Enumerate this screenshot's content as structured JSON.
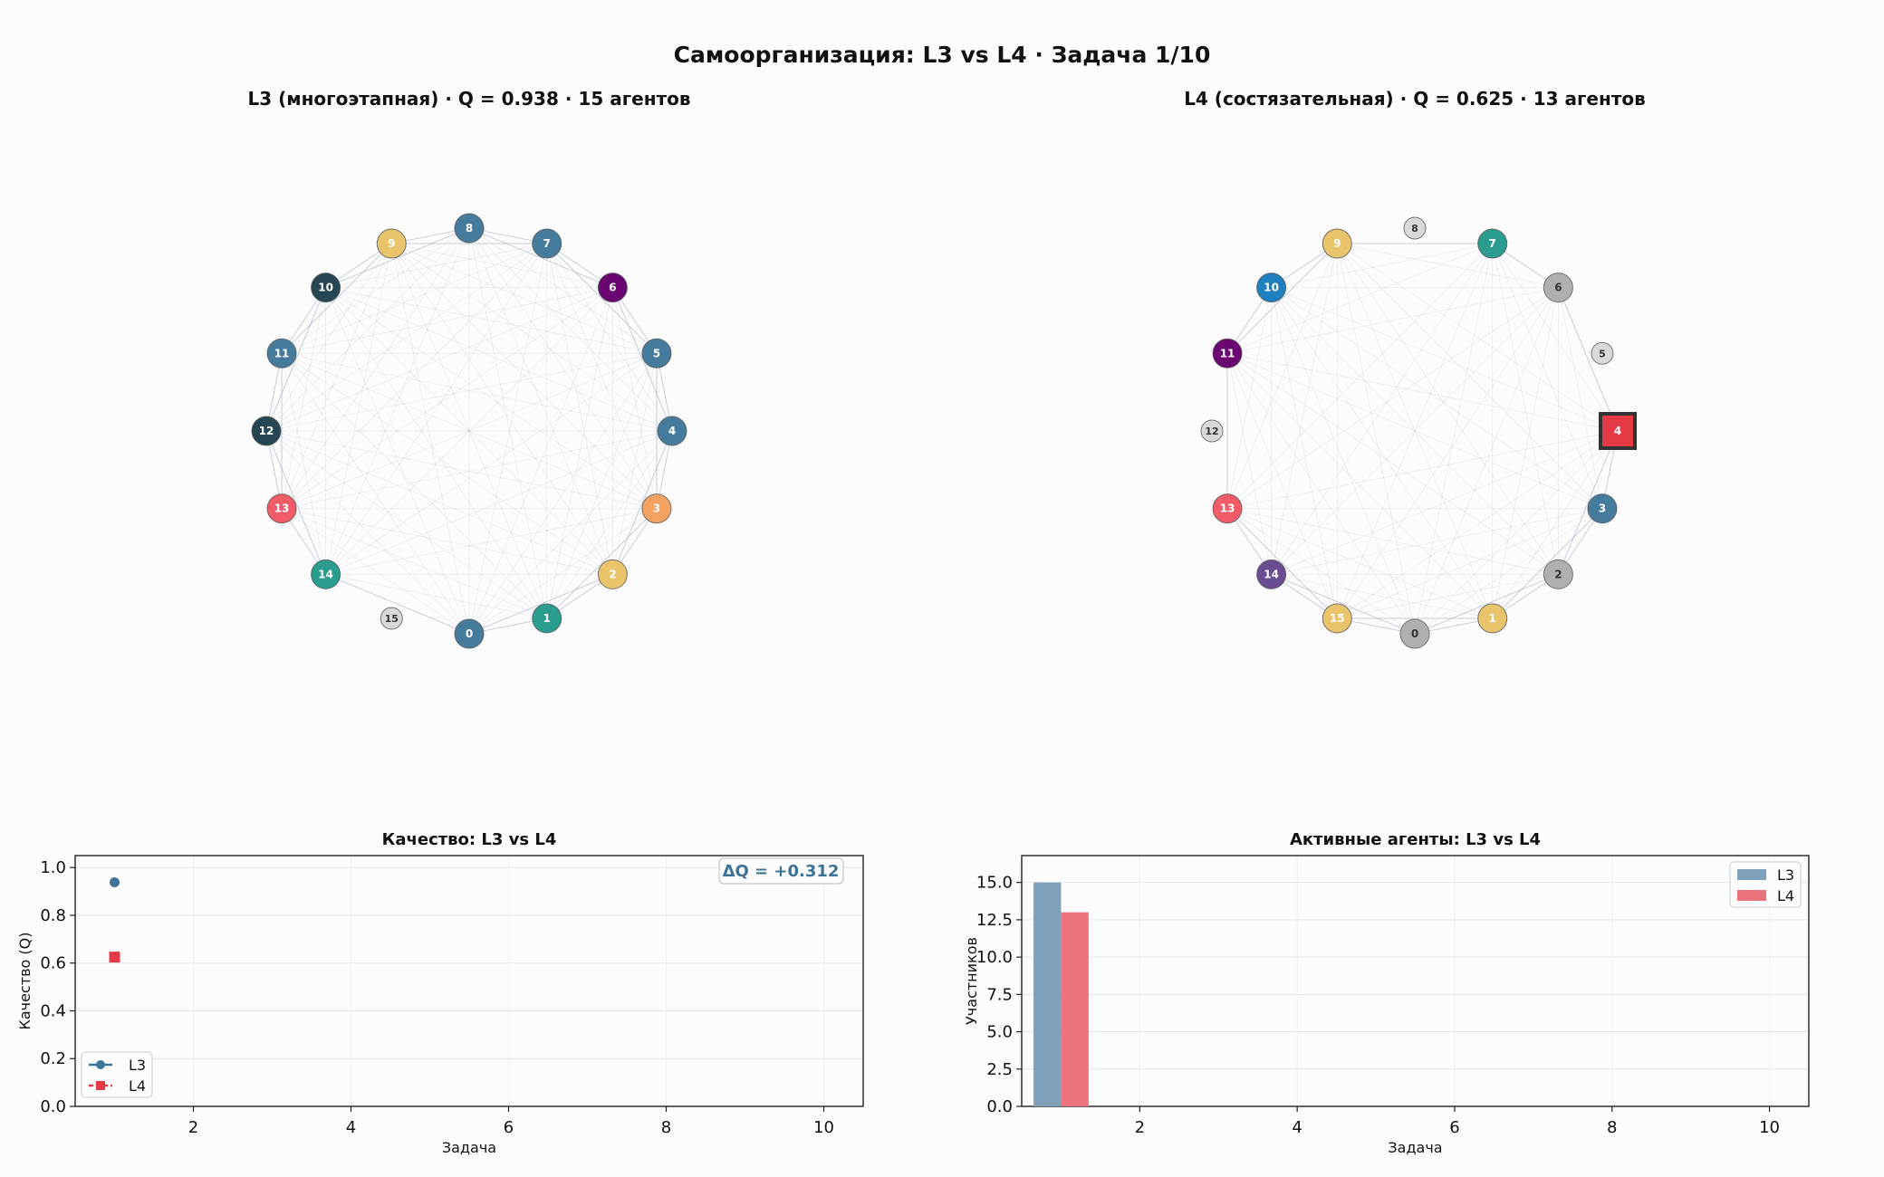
{
  "figure": {
    "title": "Самоорганизация: L3 vs L4  ·  Задача 1/10",
    "l3_title": "L3 (многоэтапная)  ·  Q = 0.938  ·  15 агентов",
    "l4_title": "L4 (состязательная)  ·  Q = 0.625  ·  13 агентов"
  },
  "colors": {
    "l3": "#3d7399",
    "l4": "#e63946",
    "inactive": "#d9d9d9",
    "grey": "#b0b0b0",
    "edge": "#9aa9c0"
  },
  "networks": [
    {
      "id": "l3",
      "nodes": [
        {
          "label": "0",
          "color": "#457b9d",
          "active": true,
          "shape": "circle"
        },
        {
          "label": "1",
          "color": "#2a9d8f",
          "active": true,
          "shape": "circle"
        },
        {
          "label": "2",
          "color": "#e9c46a",
          "active": true,
          "shape": "circle"
        },
        {
          "label": "3",
          "color": "#f4a261",
          "active": true,
          "shape": "circle"
        },
        {
          "label": "4",
          "color": "#457b9d",
          "active": true,
          "shape": "circle"
        },
        {
          "label": "5",
          "color": "#457b9d",
          "active": true,
          "shape": "circle"
        },
        {
          "label": "6",
          "color": "#6a0572",
          "active": true,
          "shape": "circle"
        },
        {
          "label": "7",
          "color": "#457b9d",
          "active": true,
          "shape": "circle"
        },
        {
          "label": "8",
          "color": "#457b9d",
          "active": true,
          "shape": "circle"
        },
        {
          "label": "9",
          "color": "#e9c46a",
          "active": true,
          "shape": "circle"
        },
        {
          "label": "10",
          "color": "#264653",
          "active": true,
          "shape": "circle"
        },
        {
          "label": "11",
          "color": "#457b9d",
          "active": true,
          "shape": "circle"
        },
        {
          "label": "12",
          "color": "#264653",
          "active": true,
          "shape": "circle"
        },
        {
          "label": "13",
          "color": "#f25c69",
          "active": true,
          "shape": "circle"
        },
        {
          "label": "14",
          "color": "#2a9d8f",
          "active": true,
          "shape": "circle"
        },
        {
          "label": "15",
          "color": "#d9d9d9",
          "active": false,
          "shape": "circle"
        }
      ]
    },
    {
      "id": "l4",
      "nodes": [
        {
          "label": "0",
          "color": "#b0b0b0",
          "active": true,
          "shape": "circle"
        },
        {
          "label": "1",
          "color": "#e9c46a",
          "active": true,
          "shape": "circle"
        },
        {
          "label": "2",
          "color": "#b0b0b0",
          "active": true,
          "shape": "circle"
        },
        {
          "label": "3",
          "color": "#457b9d",
          "active": true,
          "shape": "circle"
        },
        {
          "label": "4",
          "color": "#e63946",
          "active": true,
          "shape": "square"
        },
        {
          "label": "5",
          "color": "#d9d9d9",
          "active": false,
          "shape": "circle"
        },
        {
          "label": "6",
          "color": "#b0b0b0",
          "active": true,
          "shape": "circle"
        },
        {
          "label": "7",
          "color": "#2a9d8f",
          "active": true,
          "shape": "circle"
        },
        {
          "label": "8",
          "color": "#d9d9d9",
          "active": false,
          "shape": "circle"
        },
        {
          "label": "9",
          "color": "#e9c46a",
          "active": true,
          "shape": "circle"
        },
        {
          "label": "10",
          "color": "#1f7fbf",
          "active": true,
          "shape": "circle"
        },
        {
          "label": "11",
          "color": "#6a0572",
          "active": true,
          "shape": "circle"
        },
        {
          "label": "12",
          "color": "#d9d9d9",
          "active": false,
          "shape": "circle"
        },
        {
          "label": "13",
          "color": "#f25c69",
          "active": true,
          "shape": "circle"
        },
        {
          "label": "14",
          "color": "#6a4c93",
          "active": true,
          "shape": "circle"
        },
        {
          "label": "15",
          "color": "#e9c46a",
          "active": true,
          "shape": "circle"
        }
      ]
    }
  ],
  "chart_data": [
    {
      "type": "line",
      "title": "Качество: L3 vs L4",
      "xlabel": "Задача",
      "ylabel": "Качество (Q)",
      "xlim": [
        0.5,
        10.5
      ],
      "ylim": [
        0.0,
        1.05
      ],
      "xticks": [
        "2",
        "4",
        "6",
        "8",
        "10"
      ],
      "yticks": [
        "0.0",
        "0.2",
        "0.4",
        "0.6",
        "0.8",
        "1.0"
      ],
      "grid": true,
      "legend": "lower-left",
      "annotation": "ΔQ = +0.312",
      "series": [
        {
          "name": "L3",
          "x": [
            1
          ],
          "values": [
            0.938
          ],
          "marker": "circle"
        },
        {
          "name": "L4",
          "x": [
            1
          ],
          "values": [
            0.625
          ],
          "marker": "square"
        }
      ]
    },
    {
      "type": "bar",
      "title": "Активные агенты: L3 vs L4",
      "xlabel": "Задача",
      "ylabel": "Участников",
      "xlim": [
        0.5,
        10.5
      ],
      "ylim": [
        0.0,
        16.8
      ],
      "xticks": [
        "2",
        "4",
        "6",
        "8",
        "10"
      ],
      "yticks": [
        "0.0",
        "2.5",
        "5.0",
        "7.5",
        "10.0",
        "12.5",
        "15.0"
      ],
      "grid": true,
      "legend": "top-right",
      "categories": [
        "1"
      ],
      "series": [
        {
          "name": "L3",
          "values": [
            15
          ]
        },
        {
          "name": "L4",
          "values": [
            13
          ]
        }
      ]
    }
  ]
}
